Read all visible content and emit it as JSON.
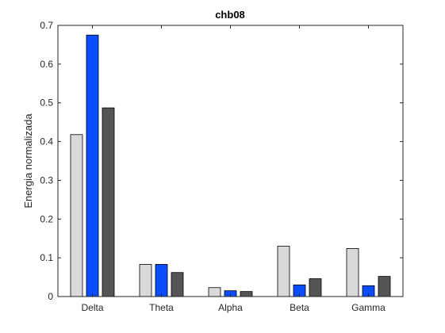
{
  "chart_data": {
    "type": "bar",
    "title": "chb08",
    "xlabel": "",
    "ylabel": "Energia normalizada",
    "categories": [
      "Delta",
      "Theta",
      "Alpha",
      "Beta",
      "Gamma"
    ],
    "ylim": [
      0,
      0.7
    ],
    "yticks": [
      "0",
      "0.1",
      "0.2",
      "0.3",
      "0.4",
      "0.5",
      "0.6",
      "0.7"
    ],
    "grid": false,
    "legend": "none",
    "series": [
      {
        "color": "#d9d9d9",
        "values": [
          0.418,
          0.083,
          0.023,
          0.13,
          0.124
        ]
      },
      {
        "color": "#0a4dff",
        "values": [
          0.675,
          0.083,
          0.015,
          0.03,
          0.028
        ]
      },
      {
        "color": "#555555",
        "values": [
          0.487,
          0.062,
          0.013,
          0.046,
          0.052
        ]
      }
    ]
  }
}
